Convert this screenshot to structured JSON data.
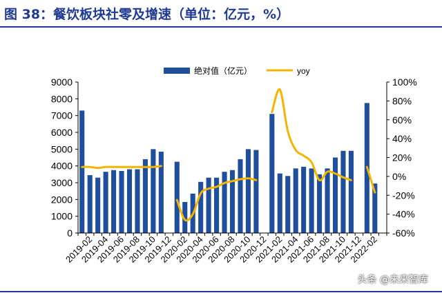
{
  "header": {
    "title": "图 38：餐饮板块社零及增速（单位：亿元，%）"
  },
  "watermark": "头条 @未来智库",
  "colors": {
    "bar": "#1f4e9c",
    "line": "#f5b400",
    "axis": "#000000",
    "title": "#1f3a93"
  },
  "chart_data": {
    "type": "bar+line",
    "title": "",
    "categories": [
      "2019-01",
      "2019-02",
      "2019-03",
      "2019-04",
      "2019-05",
      "2019-06",
      "2019-07",
      "2019-08",
      "2019-09",
      "2019-10",
      "2019-11",
      "2019-12",
      "2020-01",
      "2020-02",
      "2020-03",
      "2020-04",
      "2020-05",
      "2020-06",
      "2020-07",
      "2020-08",
      "2020-09",
      "2020-10",
      "2020-11",
      "2020-12",
      "2021-01",
      "2021-02",
      "2021-03",
      "2021-04",
      "2021-05",
      "2021-06",
      "2021-07",
      "2021-08",
      "2021-09",
      "2021-10",
      "2021-11",
      "2021-12",
      "2022-01",
      "2022-02",
      "2022-03"
    ],
    "xtick_labels": [
      "2019-02",
      "2019-04",
      "2019-06",
      "2019-08",
      "2019-10",
      "2019-12",
      "2020-02",
      "2020-04",
      "2020-06",
      "2020-08",
      "2020-10",
      "2020-12",
      "2021-02",
      "2021-04",
      "2021-06",
      "2021-08",
      "2021-10",
      "2021-12",
      "2022-02"
    ],
    "series": [
      {
        "name": "绝对值（亿元）",
        "axis": "left",
        "type": "bar",
        "values": [
          7300,
          3450,
          3300,
          3650,
          3750,
          3700,
          3800,
          3800,
          4400,
          5000,
          4850,
          null,
          4250,
          1850,
          2350,
          3050,
          3300,
          3300,
          3650,
          3750,
          4400,
          5000,
          4950,
          null,
          7100,
          3550,
          3400,
          3850,
          3950,
          3850,
          3500,
          3850,
          4500,
          4900,
          4900,
          null,
          7750,
          2950,
          null
        ]
      },
      {
        "name": "yoy",
        "axis": "right",
        "type": "line",
        "values": [
          10,
          10,
          9,
          10,
          10,
          10,
          10,
          10,
          10,
          10,
          11,
          null,
          -25,
          -46,
          -40,
          -18,
          -13,
          -11,
          -7,
          -5,
          -3,
          -2,
          -4,
          null,
          68,
          92,
          48,
          28,
          22,
          15,
          -4,
          5,
          3,
          -1,
          -4,
          null,
          10,
          -17,
          null
        ]
      }
    ],
    "y_left": {
      "min": 0,
      "max": 9000,
      "ticks": [
        "0",
        "1000",
        "2000",
        "3000",
        "4000",
        "5000",
        "6000",
        "7000",
        "8000",
        "9000"
      ]
    },
    "y_right": {
      "min": -60,
      "max": 100,
      "ticks": [
        "-60%",
        "-40%",
        "-20%",
        "0%",
        "20%",
        "40%",
        "60%",
        "80%",
        "100%"
      ]
    },
    "grid": false,
    "legend_position": "top-center"
  }
}
